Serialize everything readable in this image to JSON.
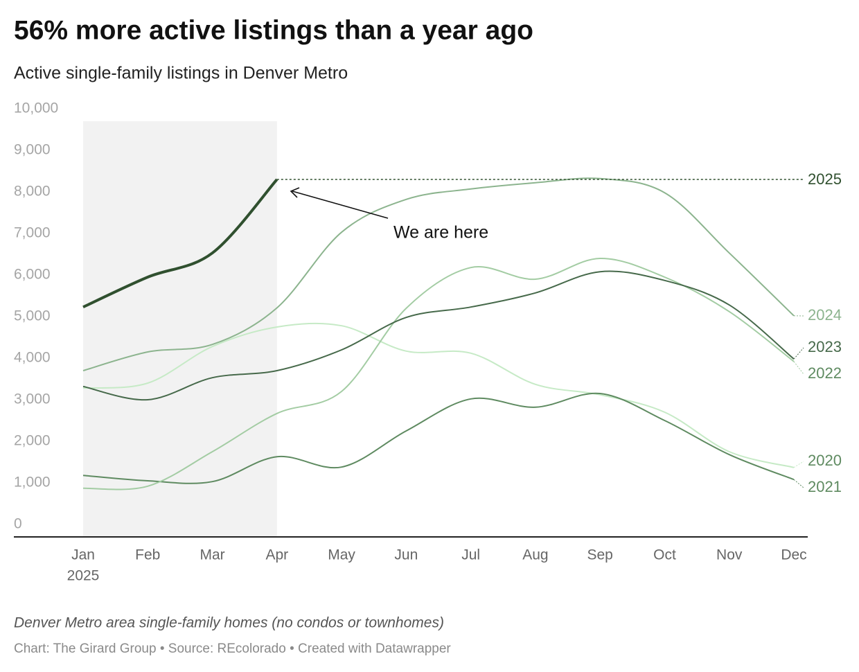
{
  "chart_data": {
    "type": "line",
    "title": "56% more active listings than a year ago",
    "subtitle": "Active single-family listings in Denver Metro",
    "categories": [
      "Jan",
      "Feb",
      "Mar",
      "Apr",
      "May",
      "Jun",
      "Jul",
      "Aug",
      "Sep",
      "Oct",
      "Nov",
      "Dec"
    ],
    "category_year": "2025",
    "ylim": [
      0,
      10000
    ],
    "yticks": [
      0,
      {
        "value": 1000,
        "label": "1,000"
      },
      {
        "value": 2000,
        "label": "2,000"
      },
      {
        "value": 3000,
        "label": "3,000"
      },
      {
        "value": 4000,
        "label": "4,000"
      },
      {
        "value": 5000,
        "label": "5,000"
      },
      {
        "value": 6000,
        "label": "6,000"
      },
      {
        "value": 7000,
        "label": "7,000"
      },
      {
        "value": 8000,
        "label": "8,000"
      },
      {
        "value": 9000,
        "label": "9,000"
      },
      {
        "value": 10000,
        "label": "10,000"
      }
    ],
    "grid": false,
    "series": [
      {
        "name": "2020",
        "color": "#c6eac6",
        "values": [
          3580,
          3700,
          4580,
          5050,
          5080,
          4470,
          4420,
          3670,
          3420,
          3000,
          2050,
          1670
        ]
      },
      {
        "name": "2021",
        "color": "#5e8a60",
        "values": [
          1480,
          1350,
          1330,
          1930,
          1680,
          2550,
          3320,
          3120,
          3450,
          2800,
          1980,
          1380
        ]
      },
      {
        "name": "2022",
        "color": "#a3cca3",
        "values": [
          1170,
          1220,
          2050,
          2970,
          3500,
          5500,
          6480,
          6200,
          6700,
          6250,
          5420,
          4220
        ]
      },
      {
        "name": "2023",
        "color": "#46694a",
        "values": [
          3620,
          3300,
          3830,
          4000,
          4500,
          5280,
          5530,
          5870,
          6380,
          6170,
          5580,
          4280
        ]
      },
      {
        "name": "2024",
        "color": "#8cb48e",
        "values": [
          4000,
          4450,
          4630,
          5510,
          7330,
          8120,
          8370,
          8520,
          8620,
          8280,
          6830,
          5320
        ]
      },
      {
        "name": "2025",
        "color": "#30502f",
        "values": [
          5530,
          6250,
          6830,
          8600,
          null,
          null,
          null,
          null,
          null,
          null,
          null,
          null
        ]
      }
    ],
    "annotation": "We are here",
    "note": "Denver Metro area single-family homes (no condos or townhomes)",
    "credit": "Chart: The Girard Group • Source: REcolorado • Created with Datawrapper"
  }
}
